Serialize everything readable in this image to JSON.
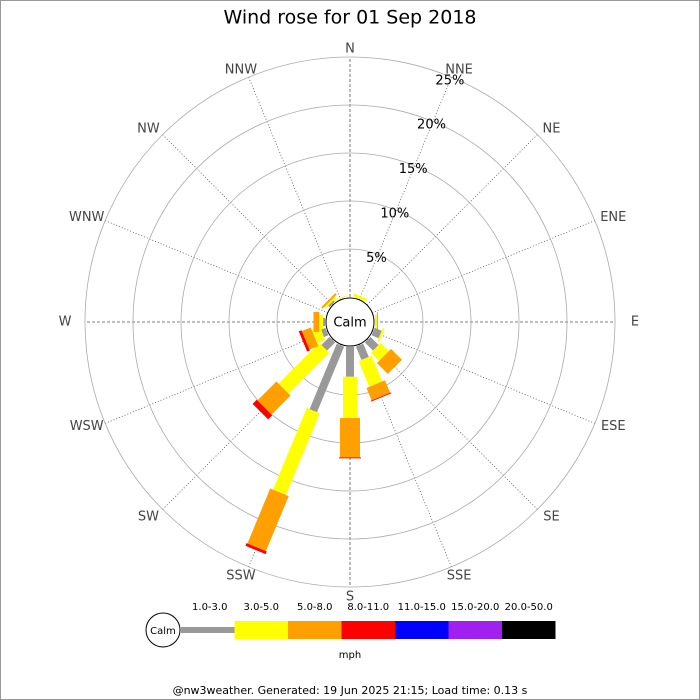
{
  "chart_data": {
    "type": "rose",
    "title": "Wind rose for 01 Sep 2018",
    "directions": [
      "N",
      "NNE",
      "NE",
      "ENE",
      "E",
      "ESE",
      "SE",
      "SSE",
      "S",
      "SSW",
      "SW",
      "WSW",
      "W",
      "WNW",
      "NW",
      "NNW"
    ],
    "series": [
      {
        "name": "1.0-3.0",
        "color": "#999999",
        "values": [
          0,
          0,
          0,
          0,
          0,
          0.8,
          1.2,
          1.5,
          3.1,
          7.4,
          1.2,
          0.5,
          0.2,
          0,
          0.2,
          0
        ]
      },
      {
        "name": "3.0-5.0",
        "color": "#ffff00",
        "values": [
          0,
          0.3,
          0,
          0,
          0.2,
          0.2,
          1.2,
          2.9,
          4.3,
          9.2,
          6.0,
          0.9,
          0.4,
          0,
          0.2,
          0.1
        ]
      },
      {
        "name": "5.0-8.0",
        "color": "#ff9f00",
        "values": [
          0,
          0,
          0,
          0,
          0.1,
          0,
          1.6,
          1.4,
          4.1,
          6.2,
          2.8,
          1.0,
          0.6,
          0,
          0.2,
          0
        ]
      },
      {
        "name": "8.0-11.0",
        "color": "#ff0000",
        "values": [
          0,
          0,
          0,
          0,
          0,
          0,
          0,
          0.1,
          0.1,
          0.3,
          0.6,
          0.3,
          0,
          0,
          0,
          0
        ]
      },
      {
        "name": "11.0-15.0",
        "color": "#0000ff",
        "values": [
          0,
          0,
          0,
          0,
          0,
          0,
          0,
          0,
          0,
          0,
          0,
          0,
          0,
          0,
          0,
          0
        ]
      },
      {
        "name": "15.0-20.0",
        "color": "#a020f0",
        "values": [
          0,
          0,
          0,
          0,
          0,
          0,
          0,
          0,
          0,
          0,
          0,
          0,
          0,
          0,
          0,
          0
        ]
      },
      {
        "name": "20.0-50.0",
        "color": "#000000",
        "values": [
          0,
          0,
          0,
          0,
          0,
          0,
          0,
          0,
          0,
          0,
          0,
          0,
          0,
          0,
          0,
          0
        ]
      }
    ],
    "rlim": [
      0,
      25
    ],
    "rticks": [
      {
        "value": 5,
        "label": "5%"
      },
      {
        "value": 10,
        "label": "10%"
      },
      {
        "value": 15,
        "label": "15%"
      },
      {
        "value": 20,
        "label": "20%"
      },
      {
        "value": 25,
        "label": "25%"
      }
    ],
    "calm_label": "Calm",
    "units": "mph",
    "footer": "@nw3weather. Generated: 19 Jun 2025 21:15; Load time: 0.13 s"
  }
}
